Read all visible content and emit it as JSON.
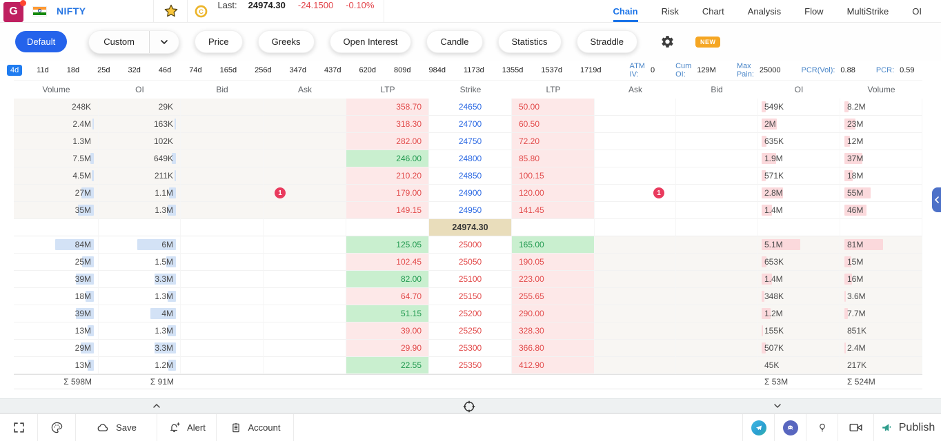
{
  "colors": {
    "accent_blue": "#1a73e8",
    "negative_red": "#e2444a",
    "positive_green": "#229a50",
    "strike_blue": "#2d6ae3",
    "call_bar_blue": "#d3e2f6",
    "put_bar_pink": "#fbd9dc",
    "ltp_pink_bg": "#fde8e8",
    "ltp_green_bg": "#c9efcf",
    "itm_shade": "#f8f6f3",
    "spot_bg": "#e9ddbb",
    "badge_red": "#e93b5e",
    "new_badge_orange": "#f5a623",
    "logo_crimson": "#bf2060"
  },
  "header": {
    "logo_letter": "G",
    "flag": "india-flag",
    "symbol": "NIFTY",
    "last_label": "Last:",
    "last_price": "24974.30",
    "change": "-24.1500",
    "change_pct": "-0.10%",
    "tabs": [
      {
        "label": "Chain",
        "active": true
      },
      {
        "label": "Risk",
        "active": false
      },
      {
        "label": "Chart",
        "active": false
      },
      {
        "label": "Analysis",
        "active": false
      },
      {
        "label": "Flow",
        "active": false
      },
      {
        "label": "MultiStrike",
        "active": false
      },
      {
        "label": "OI",
        "active": false
      }
    ]
  },
  "toolbar": {
    "default_label": "Default",
    "custom_label": "Custom",
    "pills": [
      "Price",
      "Greeks",
      "Open Interest",
      "Candle",
      "Statistics",
      "Straddle"
    ],
    "new_badge": "NEW"
  },
  "expiry": {
    "tabs": [
      "4d",
      "11d",
      "18d",
      "25d",
      "32d",
      "46d",
      "74d",
      "165d",
      "256d",
      "347d",
      "437d",
      "620d",
      "809d",
      "984d",
      "1173d",
      "1355d",
      "1537d",
      "1719d"
    ],
    "active_tab": "4d",
    "stats": [
      {
        "label": "ATM IV:",
        "value": "0"
      },
      {
        "label": "Cum OI:",
        "value": "129M"
      },
      {
        "label": "Max Pain:",
        "value": "25000"
      },
      {
        "label": "PCR(Vol):",
        "value": "0.88"
      },
      {
        "label": "PCR:",
        "value": "0.59"
      }
    ]
  },
  "chain": {
    "headers": [
      "Volume",
      "OI",
      "Bid",
      "Ask",
      "LTP",
      "Strike",
      "LTP",
      "Ask",
      "Bid",
      "OI",
      "Volume"
    ],
    "spot_price": "24974.30",
    "rows": [
      {
        "call_volume": "248K",
        "call_oi": "29K",
        "call_ltp": "358.70",
        "call_dir": "dn",
        "strike": "24650",
        "strike_zone": "below",
        "put_ltp": "50.00",
        "put_dir": "dn",
        "put_oi": "549K",
        "put_volume": "8.2M",
        "itm": "call",
        "ask_badge": ""
      },
      {
        "call_volume": "2.4M",
        "call_oi": "163K",
        "call_ltp": "318.30",
        "call_dir": "dn",
        "strike": "24700",
        "strike_zone": "below",
        "put_ltp": "60.50",
        "put_dir": "dn",
        "put_oi": "2M",
        "put_volume": "23M",
        "itm": "call",
        "ask_badge": ""
      },
      {
        "call_volume": "1.3M",
        "call_oi": "102K",
        "call_ltp": "282.00",
        "call_dir": "dn",
        "strike": "24750",
        "strike_zone": "below",
        "put_ltp": "72.20",
        "put_dir": "dn",
        "put_oi": "635K",
        "put_volume": "12M",
        "itm": "call",
        "ask_badge": ""
      },
      {
        "call_volume": "7.5M",
        "call_oi": "649K",
        "call_ltp": "246.00",
        "call_dir": "up",
        "strike": "24800",
        "strike_zone": "below",
        "put_ltp": "85.80",
        "put_dir": "dn",
        "put_oi": "1.9M",
        "put_volume": "37M",
        "itm": "call",
        "ask_badge": ""
      },
      {
        "call_volume": "4.5M",
        "call_oi": "211K",
        "call_ltp": "210.20",
        "call_dir": "dn",
        "strike": "24850",
        "strike_zone": "below",
        "put_ltp": "100.15",
        "put_dir": "dn",
        "put_oi": "571K",
        "put_volume": "18M",
        "itm": "call",
        "ask_badge": ""
      },
      {
        "call_volume": "27M",
        "call_oi": "1.1M",
        "call_ltp": "179.00",
        "call_dir": "dn",
        "strike": "24900",
        "strike_zone": "below",
        "put_ltp": "120.00",
        "put_dir": "dn",
        "put_oi": "2.8M",
        "put_volume": "55M",
        "itm": "call",
        "ask_badge": "1"
      },
      {
        "call_volume": "35M",
        "call_oi": "1.3M",
        "call_ltp": "149.15",
        "call_dir": "dn",
        "strike": "24950",
        "strike_zone": "below",
        "put_ltp": "141.45",
        "put_dir": "dn",
        "put_oi": "1.4M",
        "put_volume": "46M",
        "itm": "call",
        "ask_badge": ""
      },
      {
        "call_volume": "84M",
        "call_oi": "6M",
        "call_ltp": "125.05",
        "call_dir": "up",
        "strike": "25000",
        "strike_zone": "above",
        "put_ltp": "165.00",
        "put_dir": "up",
        "put_oi": "5.1M",
        "put_volume": "81M",
        "itm": "put",
        "ask_badge": ""
      },
      {
        "call_volume": "25M",
        "call_oi": "1.5M",
        "call_ltp": "102.45",
        "call_dir": "dn",
        "strike": "25050",
        "strike_zone": "above",
        "put_ltp": "190.05",
        "put_dir": "dn",
        "put_oi": "653K",
        "put_volume": "15M",
        "itm": "put",
        "ask_badge": ""
      },
      {
        "call_volume": "39M",
        "call_oi": "3.3M",
        "call_ltp": "82.00",
        "call_dir": "up",
        "strike": "25100",
        "strike_zone": "above",
        "put_ltp": "223.00",
        "put_dir": "dn",
        "put_oi": "1.4M",
        "put_volume": "16M",
        "itm": "put",
        "ask_badge": ""
      },
      {
        "call_volume": "18M",
        "call_oi": "1.3M",
        "call_ltp": "64.70",
        "call_dir": "dn",
        "strike": "25150",
        "strike_zone": "above",
        "put_ltp": "255.65",
        "put_dir": "dn",
        "put_oi": "348K",
        "put_volume": "3.6M",
        "itm": "put",
        "ask_badge": ""
      },
      {
        "call_volume": "39M",
        "call_oi": "4M",
        "call_ltp": "51.15",
        "call_dir": "up",
        "strike": "25200",
        "strike_zone": "above",
        "put_ltp": "290.00",
        "put_dir": "dn",
        "put_oi": "1.2M",
        "put_volume": "7.7M",
        "itm": "put",
        "ask_badge": ""
      },
      {
        "call_volume": "13M",
        "call_oi": "1.3M",
        "call_ltp": "39.00",
        "call_dir": "dn",
        "strike": "25250",
        "strike_zone": "above",
        "put_ltp": "328.30",
        "put_dir": "dn",
        "put_oi": "155K",
        "put_volume": "851K",
        "itm": "put",
        "ask_badge": ""
      },
      {
        "call_volume": "29M",
        "call_oi": "3.3M",
        "call_ltp": "29.90",
        "call_dir": "dn",
        "strike": "25300",
        "strike_zone": "above",
        "put_ltp": "366.80",
        "put_dir": "dn",
        "put_oi": "507K",
        "put_volume": "2.4M",
        "itm": "put",
        "ask_badge": ""
      },
      {
        "call_volume": "13M",
        "call_oi": "1.2M",
        "call_ltp": "22.55",
        "call_dir": "up",
        "strike": "25350",
        "strike_zone": "above",
        "put_ltp": "412.90",
        "put_dir": "dn",
        "put_oi": "45K",
        "put_volume": "217K",
        "itm": "put",
        "ask_badge": ""
      }
    ],
    "totals": {
      "call_volume": "Σ 598M",
      "call_oi": "Σ 91M",
      "put_oi": "Σ 53M",
      "put_volume": "Σ 524M"
    }
  },
  "footer": {
    "save_label": "Save",
    "alert_label": "Alert",
    "account_label": "Account",
    "publish_label": "Publish"
  }
}
